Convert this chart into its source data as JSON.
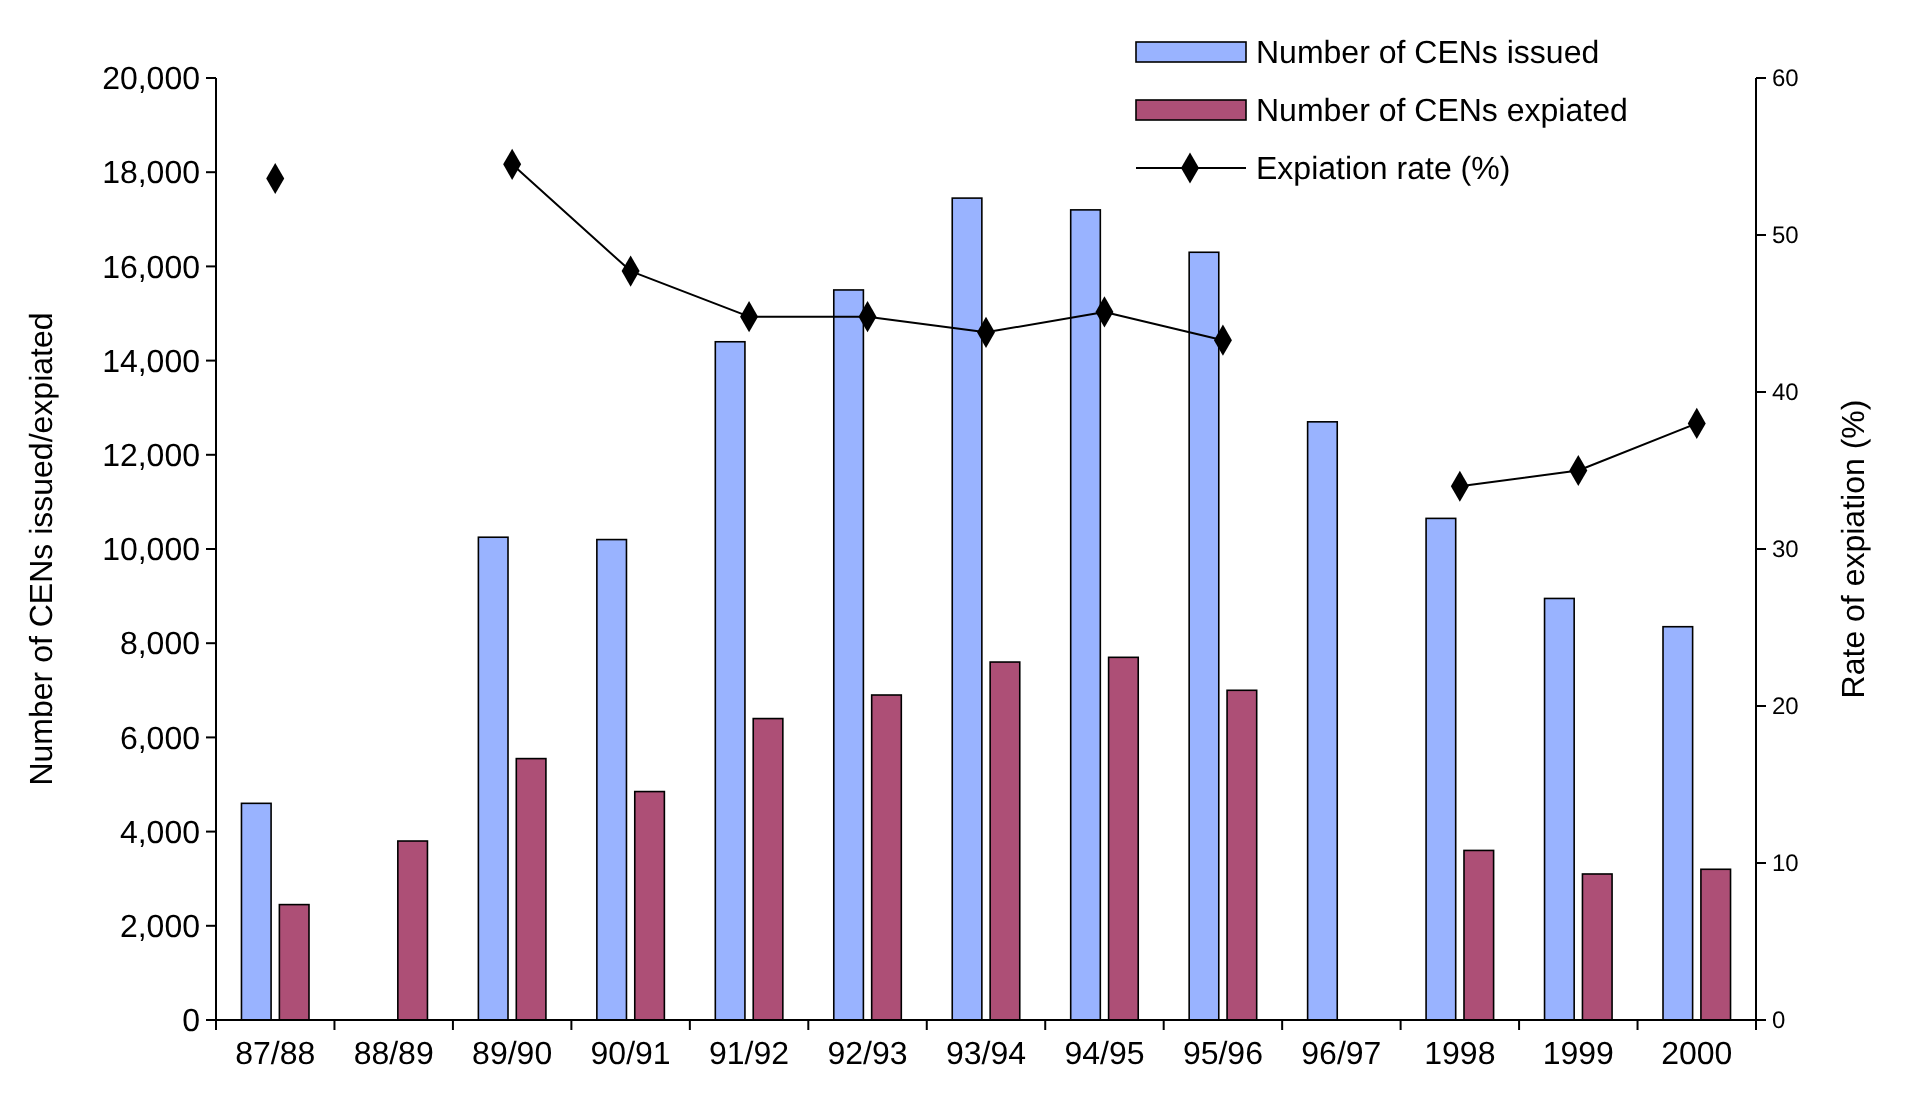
{
  "chart_data": {
    "type": "bar",
    "ylabel": "Number of CENs issued/expiated",
    "y2label": "Rate of expiation (%)",
    "categories": [
      "87/88",
      "88/89",
      "89/90",
      "90/91",
      "91/92",
      "92/93",
      "93/94",
      "94/95",
      "95/96",
      "96/97",
      "1998",
      "1999",
      "2000"
    ],
    "series": [
      {
        "name": "Number of CENs issued",
        "color": "#99b3ff",
        "values": [
          4600,
          null,
          10250,
          10200,
          14400,
          15500,
          17450,
          17200,
          16300,
          12700,
          10650,
          8950,
          8350
        ]
      },
      {
        "name": "Number of CENs expiated",
        "color": "#ad4f76",
        "values": [
          2450,
          3800,
          5550,
          4850,
          6400,
          6900,
          7600,
          7700,
          7000,
          null,
          3600,
          3100,
          3200
        ]
      },
      {
        "name": "Expiation rate (%)",
        "type": "line",
        "axis": "y2",
        "color": "#000000",
        "marker": "diamond",
        "values": [
          53.6,
          null,
          54.5,
          47.7,
          44.8,
          44.8,
          43.8,
          45.1,
          43.3,
          null,
          34,
          35,
          38
        ]
      }
    ],
    "ylim": [
      0,
      20000
    ],
    "yticks": [
      {
        "value": 0,
        "label": "0"
      },
      {
        "value": 2000,
        "label": "2,000"
      },
      {
        "value": 4000,
        "label": "4,000"
      },
      {
        "value": 6000,
        "label": "6,000"
      },
      {
        "value": 8000,
        "label": "8,000"
      },
      {
        "value": 10000,
        "label": "10,000"
      },
      {
        "value": 12000,
        "label": "12,000"
      },
      {
        "value": 14000,
        "label": "14,000"
      },
      {
        "value": 16000,
        "label": "16,000"
      },
      {
        "value": 18000,
        "label": "18,000"
      },
      {
        "value": 20000,
        "label": "20,000"
      }
    ],
    "y2lim": [
      0,
      60
    ],
    "y2ticks": [
      0,
      10,
      20,
      30,
      40,
      50,
      60
    ],
    "legend": "top right",
    "grid": false
  }
}
